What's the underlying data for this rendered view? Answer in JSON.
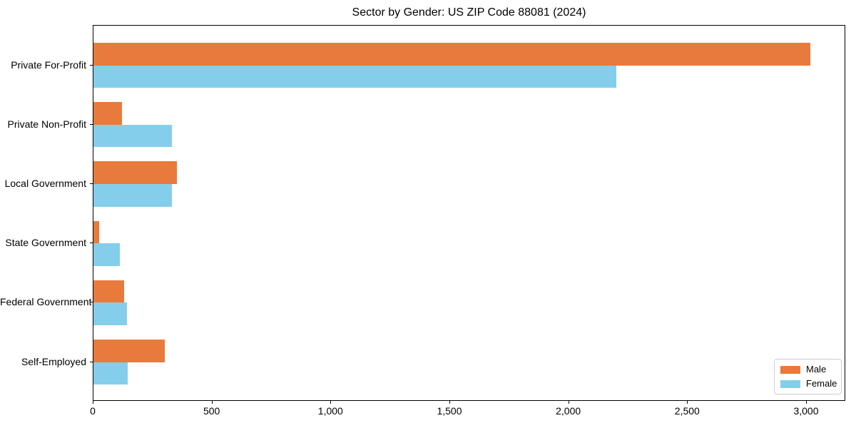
{
  "chart_data": {
    "type": "bar",
    "orientation": "horizontal",
    "title": "Sector by Gender: US ZIP Code 88081 (2024)",
    "categories": [
      "Private For-Profit",
      "Private Non-Profit",
      "Local Government",
      "State Government",
      "Federal Government",
      "Self-Employed"
    ],
    "series": [
      {
        "name": "Male",
        "color": "#E87A3C",
        "values": [
          3015,
          120,
          350,
          25,
          130,
          300
        ]
      },
      {
        "name": "Female",
        "color": "#85CEEB",
        "values": [
          2200,
          330,
          330,
          110,
          140,
          145
        ]
      }
    ],
    "xlabel": "",
    "ylabel": "",
    "xlim": [
      0,
      3165
    ],
    "x_ticks": [
      0,
      500,
      1000,
      1500,
      2000,
      2500,
      3000
    ],
    "x_tick_labels": [
      "0",
      "500",
      "1,000",
      "1,500",
      "2,000",
      "2,500",
      "3,000"
    ],
    "grid": false,
    "legend_position": "lower right",
    "background_color": "#ffffff",
    "axis_color": "#000000"
  }
}
